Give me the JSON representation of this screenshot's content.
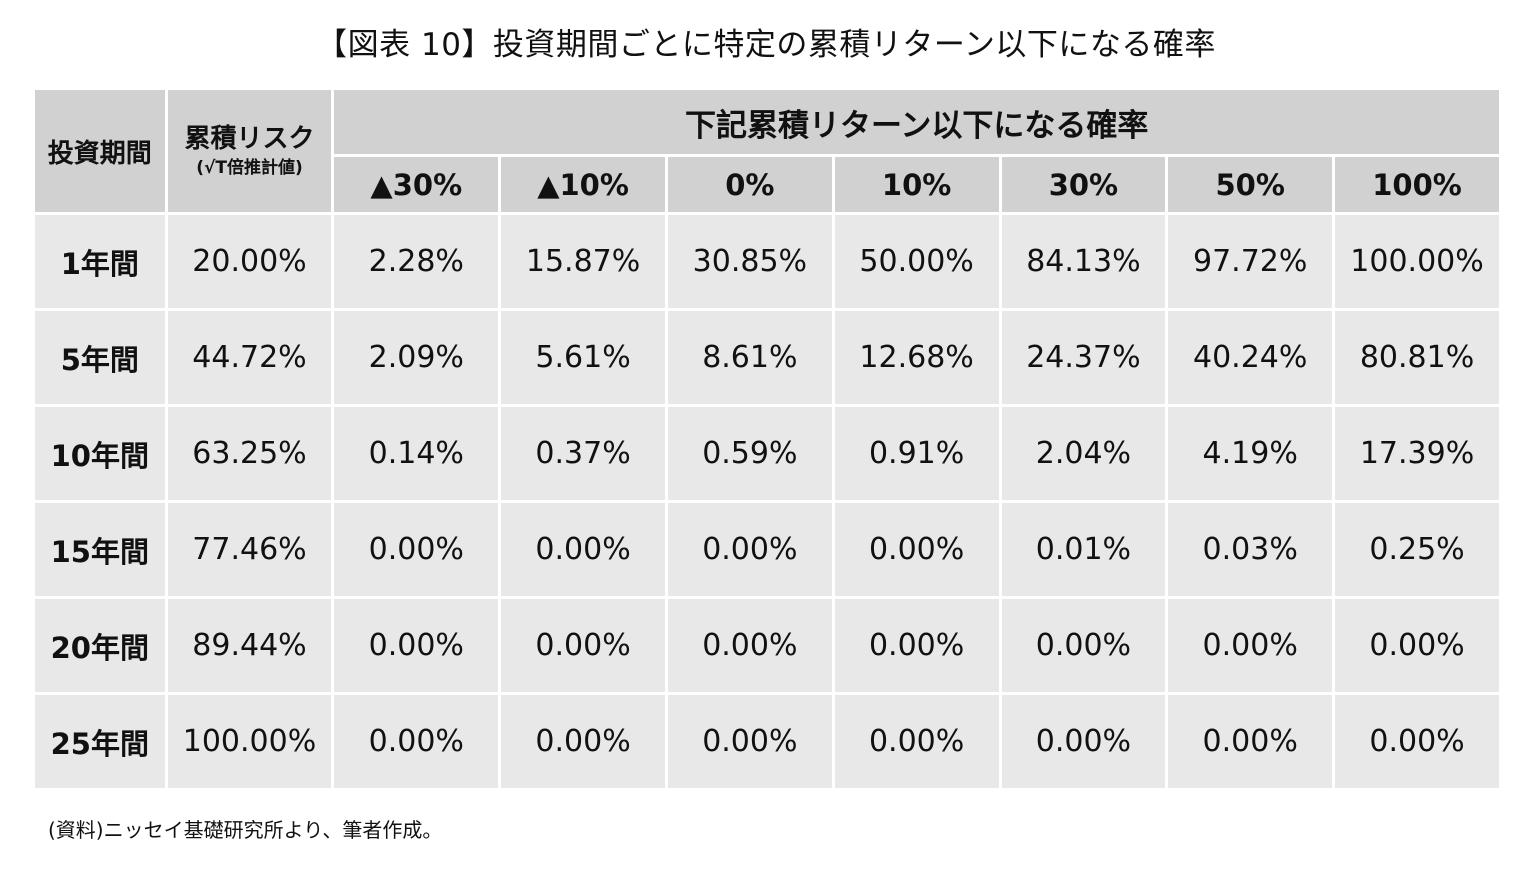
{
  "title": "【図表 10】投資期間ごとに特定の累積リターン以下になる確率",
  "table": {
    "col_period": "投資期間",
    "col_risk": "累積リスク",
    "col_risk_note": "(√T倍推計値)",
    "group_header": "下記累積リターン以下になる確率",
    "thresholds": [
      "▲30%",
      "▲10%",
      "0%",
      "10%",
      "30%",
      "50%",
      "100%"
    ],
    "rows": [
      {
        "period": "1年間",
        "risk": "20.00%",
        "probs": [
          "2.28%",
          "15.87%",
          "30.85%",
          "50.00%",
          "84.13%",
          "97.72%",
          "100.00%"
        ]
      },
      {
        "period": "5年間",
        "risk": "44.72%",
        "probs": [
          "2.09%",
          "5.61%",
          "8.61%",
          "12.68%",
          "24.37%",
          "40.24%",
          "80.81%"
        ]
      },
      {
        "period": "10年間",
        "risk": "63.25%",
        "probs": [
          "0.14%",
          "0.37%",
          "0.59%",
          "0.91%",
          "2.04%",
          "4.19%",
          "17.39%"
        ]
      },
      {
        "period": "15年間",
        "risk": "77.46%",
        "probs": [
          "0.00%",
          "0.00%",
          "0.00%",
          "0.00%",
          "0.01%",
          "0.03%",
          "0.25%"
        ]
      },
      {
        "period": "20年間",
        "risk": "89.44%",
        "probs": [
          "0.00%",
          "0.00%",
          "0.00%",
          "0.00%",
          "0.00%",
          "0.00%",
          "0.00%"
        ]
      },
      {
        "period": "25年間",
        "risk": "100.00%",
        "probs": [
          "0.00%",
          "0.00%",
          "0.00%",
          "0.00%",
          "0.00%",
          "0.00%",
          "0.00%"
        ]
      }
    ]
  },
  "source": "(資料)ニッセイ基礎研究所より、筆者作成。",
  "colors": {
    "header_bg": "#d1d1d1",
    "cell_bg": "#e8e8e8",
    "border": "#ffffff"
  }
}
